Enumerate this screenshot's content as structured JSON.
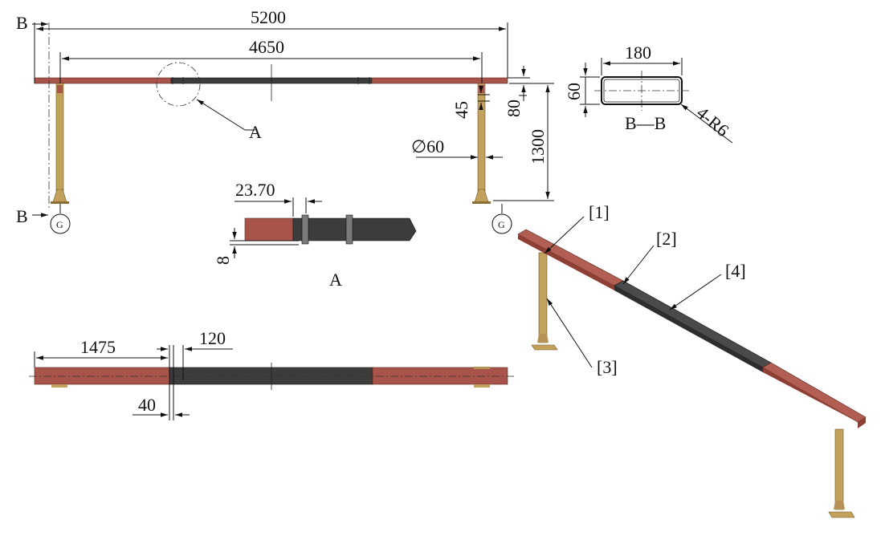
{
  "section_mark": "B",
  "detail_mark": "A",
  "dimensions": {
    "overall_length": "5200",
    "support_span": "4650",
    "rail_height": "1300",
    "rail_thickness": "80",
    "post_offset": "45",
    "post_diameter": "∅60",
    "joint_width": "23.70",
    "gap": "8",
    "plan_offset": "1475",
    "plan_splice": "120",
    "plan_edge": "40"
  },
  "section": {
    "title": "B—B",
    "width": "180",
    "height": "60",
    "radius": "4-R6"
  },
  "grounding_symbol": "G",
  "callouts": [
    "[1]",
    "[2]",
    "[3]",
    "[4]"
  ],
  "colors": {
    "rail_red": "#a8544a",
    "rail_dark": "#3c3c3c",
    "post": "#c2a15c",
    "post_dark": "#8a6e33"
  }
}
